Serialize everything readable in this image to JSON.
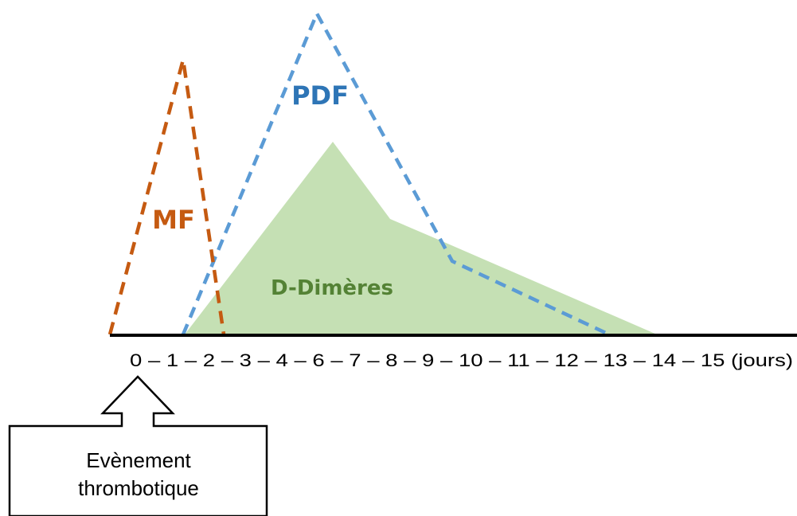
{
  "axis": {
    "scale_text": "0 – 1 – 2 – 3 – 4 – 6 – 7 – 8 – 9 – 10 – 11 – 12 – 13 – 14 – 15 (jours)"
  },
  "series": {
    "mf": {
      "label": "MF",
      "color": "#c55a11"
    },
    "pdf": {
      "label": "PDF",
      "color": "#2e75b6",
      "stroke": "#5b9bd5"
    },
    "d_dimers": {
      "label": "D-Dimères",
      "color": "#548235",
      "fill": "#c5e0b4"
    }
  },
  "event_box": {
    "line1": "Evènement",
    "line2": "thrombotique"
  }
}
